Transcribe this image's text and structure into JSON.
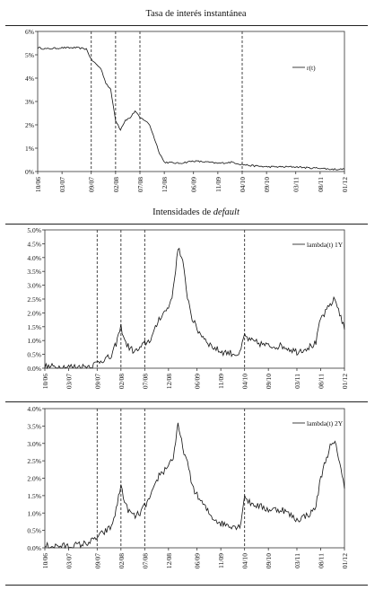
{
  "chart_data": [
    {
      "type": "line",
      "title": "Tasa de interés instantánea",
      "ylim": [
        0,
        6
      ],
      "yticks": [
        "0%",
        "1%",
        "2%",
        "3%",
        "4%",
        "5%",
        "6%"
      ],
      "xtick_labels": [
        "10/06",
        "03/07",
        "09/07",
        "02/08",
        "07/08",
        "12/08",
        "06/09",
        "11/09",
        "04/10",
        "09/10",
        "03/11",
        "08/11",
        "01/12"
      ],
      "event_lines": [
        "09/07",
        "02/08",
        "07/08",
        "04/10"
      ],
      "legend_position": "top-right",
      "grid": false,
      "series": [
        {
          "name": "r(t)",
          "points": [
            [
              "10/06",
              5.3
            ],
            [
              "12/06",
              5.25
            ],
            [
              "03/07",
              5.3
            ],
            [
              "06/07",
              5.3
            ],
            [
              "08/07",
              5.25
            ],
            [
              "09/07",
              4.8
            ],
            [
              "10/07",
              4.6
            ],
            [
              "11/07",
              4.4
            ],
            [
              "12/07",
              3.8
            ],
            [
              "01/08",
              3.5
            ],
            [
              "02/08",
              2.2
            ],
            [
              "03/08",
              1.8
            ],
            [
              "04/08",
              2.2
            ],
            [
              "05/08",
              2.3
            ],
            [
              "06/08",
              2.6
            ],
            [
              "07/08",
              2.3
            ],
            [
              "08/08",
              2.2
            ],
            [
              "09/08",
              2.0
            ],
            [
              "10/08",
              1.4
            ],
            [
              "11/08",
              0.8
            ],
            [
              "12/08",
              0.4
            ],
            [
              "03/09",
              0.35
            ],
            [
              "06/09",
              0.45
            ],
            [
              "09/09",
              0.4
            ],
            [
              "11/09",
              0.35
            ],
            [
              "02/10",
              0.4
            ],
            [
              "04/10",
              0.3
            ],
            [
              "06/10",
              0.25
            ],
            [
              "09/10",
              0.2
            ],
            [
              "12/10",
              0.2
            ],
            [
              "03/11",
              0.2
            ],
            [
              "06/11",
              0.15
            ],
            [
              "08/11",
              0.15
            ],
            [
              "10/11",
              0.1
            ],
            [
              "01/12",
              0.1
            ]
          ]
        }
      ]
    },
    {
      "type": "line",
      "title": "Intensidades de default",
      "ylim": [
        0,
        5
      ],
      "yticks": [
        "0.0%",
        "0.5%",
        "1.0%",
        "1.5%",
        "2.0%",
        "2.5%",
        "3.0%",
        "3.5%",
        "4.0%",
        "4.5%",
        "5.0%"
      ],
      "xtick_labels": [
        "10/06",
        "03/07",
        "09/07",
        "02/08",
        "07/08",
        "12/08",
        "06/09",
        "11/09",
        "04/10",
        "09/10",
        "03/11",
        "08/11",
        "01/12"
      ],
      "event_lines": [
        "09/07",
        "02/08",
        "07/08",
        "04/10"
      ],
      "legend_position": "top-right",
      "grid": false,
      "series": [
        {
          "name": "lambda(t) 1Y",
          "points": [
            [
              "10/06",
              0.05
            ],
            [
              "03/07",
              0.05
            ],
            [
              "06/07",
              0.05
            ],
            [
              "08/07",
              0.1
            ],
            [
              "09/07",
              0.2
            ],
            [
              "10/07",
              0.3
            ],
            [
              "12/07",
              0.4
            ],
            [
              "01/08",
              0.9
            ],
            [
              "02/08",
              1.5
            ],
            [
              "03/08",
              0.9
            ],
            [
              "04/08",
              0.7
            ],
            [
              "05/08",
              0.6
            ],
            [
              "06/08",
              0.7
            ],
            [
              "07/08",
              0.9
            ],
            [
              "08/08",
              1.0
            ],
            [
              "09/08",
              1.3
            ],
            [
              "10/08",
              1.8
            ],
            [
              "11/08",
              2.0
            ],
            [
              "12/08",
              2.2
            ],
            [
              "01/09",
              2.8
            ],
            [
              "02/09",
              4.4
            ],
            [
              "03/09",
              3.8
            ],
            [
              "04/09",
              2.6
            ],
            [
              "05/09",
              1.8
            ],
            [
              "06/09",
              1.4
            ],
            [
              "07/09",
              1.2
            ],
            [
              "08/09",
              1.0
            ],
            [
              "09/09",
              0.8
            ],
            [
              "11/09",
              0.6
            ],
            [
              "01/10",
              0.55
            ],
            [
              "03/10",
              0.5
            ],
            [
              "04/10",
              1.2
            ],
            [
              "05/10",
              1.0
            ],
            [
              "07/10",
              0.9
            ],
            [
              "09/10",
              0.8
            ],
            [
              "12/10",
              0.8
            ],
            [
              "03/11",
              0.6
            ],
            [
              "06/11",
              0.8
            ],
            [
              "07/11",
              0.9
            ],
            [
              "08/11",
              1.8
            ],
            [
              "09/11",
              2.0
            ],
            [
              "10/11",
              2.3
            ],
            [
              "11/11",
              2.5
            ],
            [
              "12/11",
              2.0
            ],
            [
              "01/12",
              1.4
            ]
          ]
        }
      ]
    },
    {
      "type": "line",
      "title": "",
      "ylim": [
        0,
        4
      ],
      "yticks": [
        "0.0%",
        "0.5%",
        "1.0%",
        "1.5%",
        "2.0%",
        "2.5%",
        "3.0%",
        "3.5%",
        "4.0%"
      ],
      "xtick_labels": [
        "10/06",
        "03/07",
        "09/07",
        "02/08",
        "07/08",
        "12/08",
        "06/09",
        "11/09",
        "04/10",
        "09/10",
        "03/11",
        "08/11",
        "01/12"
      ],
      "event_lines": [
        "09/07",
        "02/08",
        "07/08",
        "04/10"
      ],
      "legend_position": "top-right",
      "grid": false,
      "series": [
        {
          "name": "lambda(t) 2Y",
          "points": [
            [
              "10/06",
              0.05
            ],
            [
              "03/07",
              0.05
            ],
            [
              "06/07",
              0.1
            ],
            [
              "08/07",
              0.2
            ],
            [
              "09/07",
              0.3
            ],
            [
              "10/07",
              0.4
            ],
            [
              "12/07",
              0.6
            ],
            [
              "01/08",
              1.1
            ],
            [
              "02/08",
              1.8
            ],
            [
              "03/08",
              1.2
            ],
            [
              "04/08",
              1.0
            ],
            [
              "05/08",
              0.9
            ],
            [
              "06/08",
              1.0
            ],
            [
              "07/08",
              1.2
            ],
            [
              "08/08",
              1.4
            ],
            [
              "09/08",
              1.7
            ],
            [
              "10/08",
              2.1
            ],
            [
              "11/08",
              2.2
            ],
            [
              "12/08",
              2.4
            ],
            [
              "01/09",
              2.6
            ],
            [
              "02/09",
              3.5
            ],
            [
              "03/09",
              2.9
            ],
            [
              "04/09",
              2.4
            ],
            [
              "05/09",
              1.8
            ],
            [
              "06/09",
              1.5
            ],
            [
              "07/09",
              1.3
            ],
            [
              "08/09",
              1.1
            ],
            [
              "09/09",
              0.9
            ],
            [
              "11/09",
              0.7
            ],
            [
              "01/10",
              0.65
            ],
            [
              "03/10",
              0.6
            ],
            [
              "04/10",
              1.5
            ],
            [
              "05/10",
              1.3
            ],
            [
              "07/10",
              1.2
            ],
            [
              "09/10",
              1.1
            ],
            [
              "12/10",
              1.1
            ],
            [
              "03/11",
              0.8
            ],
            [
              "06/11",
              1.0
            ],
            [
              "07/11",
              1.2
            ],
            [
              "08/11",
              2.0
            ],
            [
              "09/11",
              2.5
            ],
            [
              "10/11",
              2.9
            ],
            [
              "11/11",
              3.0
            ],
            [
              "12/11",
              2.5
            ],
            [
              "01/12",
              1.7
            ]
          ]
        }
      ]
    }
  ]
}
